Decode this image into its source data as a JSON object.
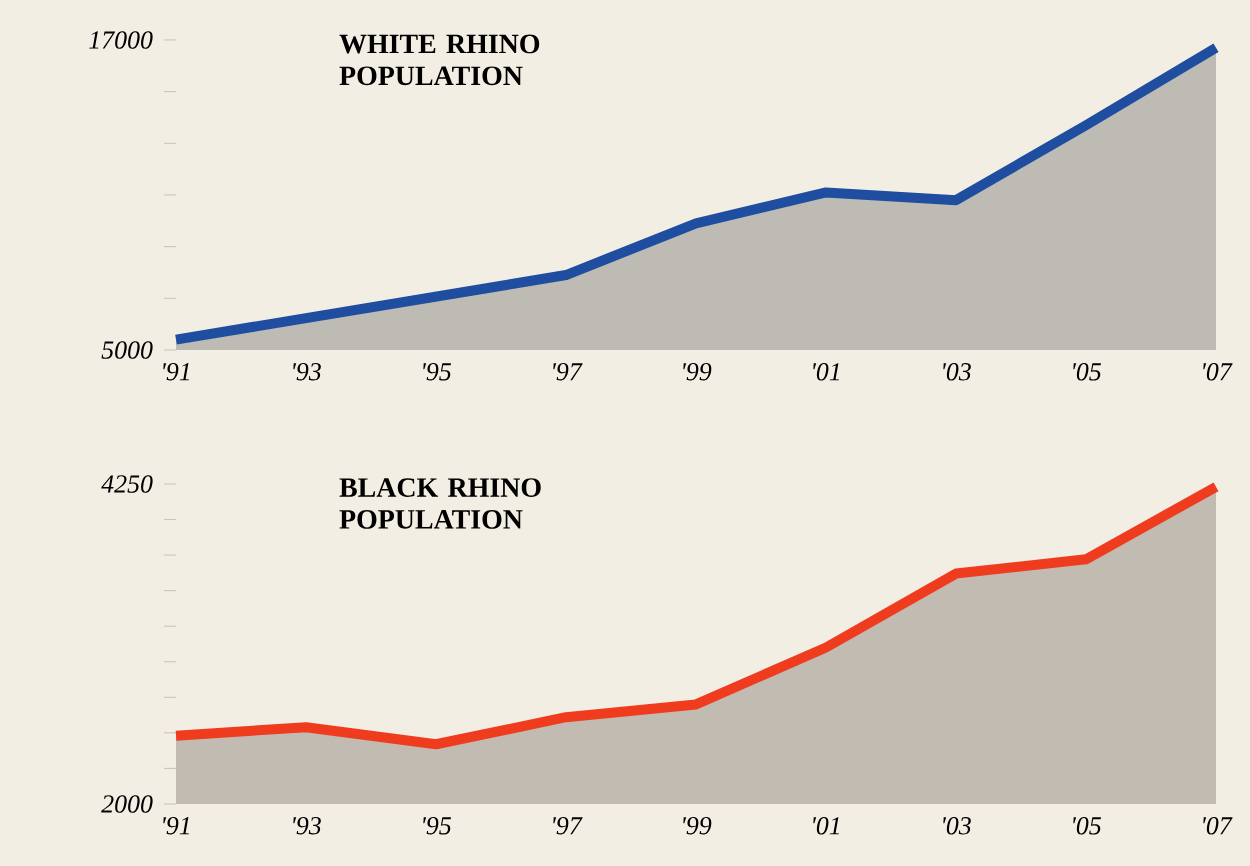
{
  "chart_data": [
    {
      "type": "area",
      "title": "WHITE RHINO POPULATION",
      "x": [
        1991,
        1997,
        1999,
        2001,
        2003,
        2005,
        2007
      ],
      "series": [
        {
          "color": "#1f4ea0",
          "values": [
            5400,
            7900,
            9900,
            11100,
            10800,
            13700,
            16700
          ]
        }
      ],
      "xlim": [
        1991,
        2007
      ],
      "ylim": [
        5000,
        17000
      ],
      "xticks": [
        {
          "value": 1991,
          "label": "'91"
        },
        {
          "value": 1993,
          "label": "'93"
        },
        {
          "value": 1995,
          "label": "'95"
        },
        {
          "value": 1997,
          "label": "'97"
        },
        {
          "value": 1999,
          "label": "'99"
        },
        {
          "value": 2001,
          "label": "'01"
        },
        {
          "value": 2003,
          "label": "'03"
        },
        {
          "value": 2005,
          "label": "'05"
        },
        {
          "value": 2007,
          "label": "'07"
        }
      ],
      "yticks": [
        5000,
        {
          "value": 7000,
          "label": null
        },
        {
          "value": 9000,
          "label": null
        },
        {
          "value": 11000,
          "label": null
        },
        {
          "value": 13000,
          "label": null
        },
        {
          "value": 15000,
          "label": null
        },
        17000
      ]
    },
    {
      "type": "area",
      "title": "BLACK RHINO POPULATION",
      "x": [
        1991,
        1993,
        1995,
        1997,
        1999,
        2001,
        2003,
        2005,
        2007
      ],
      "series": [
        {
          "color": "#f03c1e",
          "values": [
            2480,
            2540,
            2420,
            2610,
            2700,
            3100,
            3620,
            3720,
            4230
          ]
        }
      ],
      "xlim": [
        1991,
        2007
      ],
      "ylim": [
        2000,
        4250
      ],
      "xticks": [
        {
          "value": 1991,
          "label": "'91"
        },
        {
          "value": 1993,
          "label": "'93"
        },
        {
          "value": 1995,
          "label": "'95"
        },
        {
          "value": 1997,
          "label": "'97"
        },
        {
          "value": 1999,
          "label": "'99"
        },
        {
          "value": 2001,
          "label": "'01"
        },
        {
          "value": 2003,
          "label": "'03"
        },
        {
          "value": 2005,
          "label": "'05"
        },
        {
          "value": 2007,
          "label": "'07"
        }
      ],
      "yticks": [
        2000,
        {
          "value": 2250,
          "label": null
        },
        {
          "value": 2500,
          "label": null
        },
        {
          "value": 2750,
          "label": null
        },
        {
          "value": 3000,
          "label": null
        },
        {
          "value": 3250,
          "label": null
        },
        {
          "value": 3500,
          "label": null
        },
        {
          "value": 3750,
          "label": null
        },
        {
          "value": 4000,
          "label": null
        },
        4250
      ]
    }
  ]
}
